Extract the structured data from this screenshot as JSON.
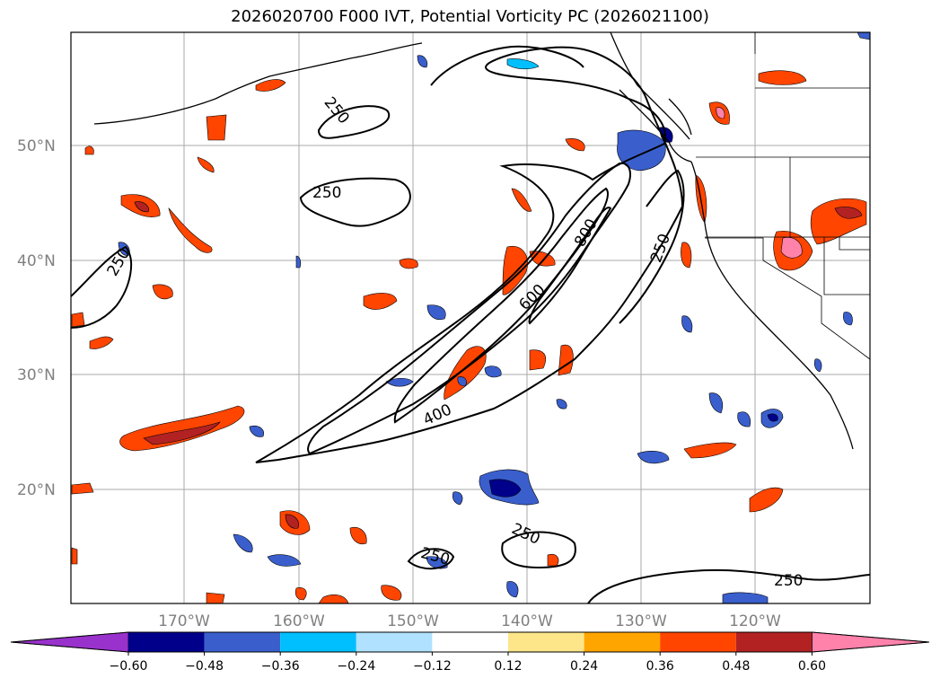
{
  "title": "2026020700 F000 IVT, Potential Vorticity PC (2026021100)",
  "lat_labels": [
    "50°N",
    "40°N",
    "30°N",
    "20°N"
  ],
  "lon_labels": [
    "170°W",
    "160°W",
    "150°W",
    "140°W",
    "130°W",
    "120°W"
  ],
  "contour_labels": [
    "250",
    "250",
    "250",
    "600",
    "400",
    "800",
    "250",
    "250",
    "250",
    "250"
  ],
  "colorbar": {
    "tick_labels": [
      "−0.60",
      "−0.48",
      "−0.36",
      "−0.24",
      "−0.12",
      "0.12",
      "0.24",
      "0.36",
      "0.48",
      "0.60"
    ],
    "colors": [
      "#9932cc",
      "#00008b",
      "#3a5fcd",
      "#00bfff",
      "#b0e2ff",
      "#ffffff",
      "#fde68a",
      "#ffa500",
      "#ff4500",
      "#b22222",
      "#ff82ab"
    ]
  }
}
